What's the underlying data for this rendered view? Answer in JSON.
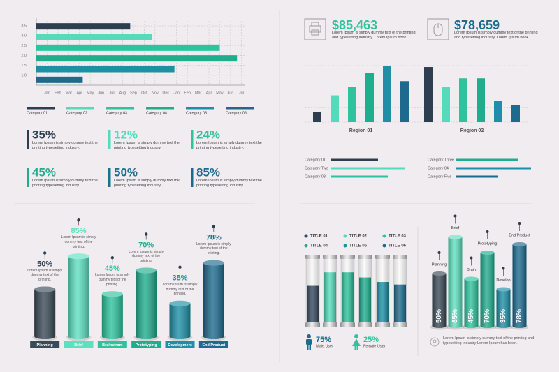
{
  "chart_data": [
    {
      "type": "bar",
      "orientation": "horizontal",
      "categories": [
        "Category 01",
        "Category 02",
        "Category 03",
        "Category 04",
        "Category 05",
        "Category 06"
      ],
      "values": [
        8.7,
        10.7,
        17.0,
        18.6,
        12.8,
        4.3
      ],
      "colors": [
        "#2c3e50",
        "#54dbbb",
        "#2ec39d",
        "#20ad8e",
        "#1d8fa6",
        "#1d6a8e"
      ],
      "xlim": [
        0,
        19.3
      ],
      "xticks": [
        {
          "value": 1,
          "label": "Jan"
        },
        {
          "value": 2,
          "label": "Feb"
        },
        {
          "value": 3,
          "label": "Mar"
        },
        {
          "value": 4,
          "label": "Apr"
        },
        {
          "value": 5,
          "label": "May"
        },
        {
          "value": 6,
          "label": "Jun"
        },
        {
          "value": 7,
          "label": "Jul"
        },
        {
          "value": 8,
          "label": "Aug"
        },
        {
          "value": 9,
          "label": "Sep"
        },
        {
          "value": 10,
          "label": "Oct"
        },
        {
          "value": 11,
          "label": "Nov"
        },
        {
          "value": 12,
          "label": "Dec"
        },
        {
          "value": 13,
          "label": "Jan"
        },
        {
          "value": 14,
          "label": "Feb"
        },
        {
          "value": 15,
          "label": "Mar"
        },
        {
          "value": 16,
          "label": "Apr"
        },
        {
          "value": 17,
          "label": "May"
        },
        {
          "value": 18,
          "label": "Jun"
        },
        {
          "value": 19,
          "label": "Jul"
        }
      ],
      "ylim": [
        0.5,
        3.75
      ],
      "yticks": [
        {
          "value": 1,
          "label": "1.0"
        },
        1.5,
        {
          "value": 2,
          "label": "2.0"
        },
        2.5,
        {
          "value": 3,
          "label": "3.0"
        },
        3.5
      ],
      "grid": true
    },
    {
      "type": "column",
      "categories": [
        "Region 01",
        "Region 02"
      ],
      "series": [
        {
          "name": "Category 01",
          "color": "#2c3e50",
          "values": [
            0.7,
            3.9
          ]
        },
        {
          "name": "Category Two",
          "color": "#54dbbb",
          "values": [
            1.9,
            2.5
          ]
        },
        {
          "name": "Category 03",
          "color": "#2ec39d",
          "values": [
            2.5,
            3.1
          ]
        },
        {
          "name": "Category Three",
          "color": "#20ad8e",
          "values": [
            3.5,
            3.1
          ]
        },
        {
          "name": "Category 04",
          "color": "#1d8fa6",
          "values": [
            4.0,
            1.5
          ]
        },
        {
          "name": "Category Five",
          "color": "#1d6a8e",
          "values": [
            2.9,
            1.2
          ]
        }
      ],
      "ylim": [
        0,
        4
      ],
      "yticks": [
        0,
        1,
        2,
        3,
        4
      ],
      "grid": true
    },
    {
      "type": "cylinder",
      "label_position": "above",
      "categories": [
        "Planning",
        "Brief",
        "Brainstrom",
        "Prototyping",
        "Development",
        "End Product"
      ],
      "values": [
        50,
        85,
        45,
        70,
        35,
        78
      ],
      "value_labels": [
        "50%",
        "85%",
        "45%",
        "70%",
        "35%",
        "78%"
      ],
      "annotations": [
        "Lorem Ipsum is simply dummy text of the printing.",
        "Lorem Ipsum is simply dummy text of the printing.",
        "Lorem Ipsum is simply dummy text of the printing.",
        "Lorem Ipsum is simply dummy text of the printing.",
        "Lorem Ipsum is simply dummy text of the printing.",
        "Lorem Ipsum is simply dummy text of the printing."
      ],
      "colors": [
        "#3a4a56",
        "#5ee0c0",
        "#2ec39d",
        "#20ad8e",
        "#1d8fa6",
        "#1d6a8e"
      ],
      "ylim": [
        0,
        100
      ]
    },
    {
      "type": "tube",
      "categories": [
        "TITLE 01",
        "TITLE 02",
        "TITLE 03",
        "TITLE 04",
        "TITLE 05",
        "TITLE 06"
      ],
      "values": [
        57,
        78,
        78,
        70,
        63,
        59
      ],
      "colors": [
        "#34495e",
        "#54dbbb",
        "#2ec39d",
        "#20ad8e",
        "#1d8fa6",
        "#1d6a8e"
      ],
      "ylim": [
        0,
        100
      ]
    },
    {
      "type": "cylinder",
      "label_position": "inside",
      "categories": [
        "Planning",
        "Brief",
        "Brain",
        "Prototyping",
        "Develop",
        "End Product"
      ],
      "values": [
        50,
        85,
        45,
        70,
        35,
        78
      ],
      "value_labels": [
        "50%",
        "85%",
        "45%",
        "70%",
        "35%",
        "78%"
      ],
      "colors": [
        "#3a4a56",
        "#5ee0c0",
        "#2ec39d",
        "#20ad8e",
        "#1d8fa6",
        "#1d6a8e"
      ],
      "ylim": [
        0,
        100
      ],
      "caption": "Lorem Ipsum is simply dummy text of the printing and typesetting industry Lorem Ipsum has been."
    }
  ],
  "stats": [
    {
      "value": "35%",
      "text": "Lorem Ipsum is simply dummy text the printing typesetting industry.",
      "color": "#2c3e50"
    },
    {
      "value": "12%",
      "text": "Lorem Ipsum is simply dummy text the printing typesetting industry.",
      "color": "#54dbbb"
    },
    {
      "value": "24%",
      "text": "Lorem Ipsum is simply dummy text the printing typesetting industry.",
      "color": "#2ec39d"
    },
    {
      "value": "45%",
      "text": "Lorem Ipsum is simply dummy text the printing typesetting industry.",
      "color": "#20ad8e"
    },
    {
      "value": "50%",
      "text": "Lorem Ipsum is simply dummy text the printing typesetting industry.",
      "color": "#1d6f8e"
    },
    {
      "value": "85%",
      "text": "Lorem Ipsum is simply dummy text the printing typesetting industry.",
      "color": "#1d6a8e"
    }
  ],
  "kpis": [
    {
      "value": "$85,463",
      "text": "Lorem Ipsum is simply dummy text of the printing and typesetting industry. Lorem Ipsum book.",
      "color": "#2ec39d"
    },
    {
      "value": "$78,659",
      "text": "Lorem Ipsum is simply dummy text of the printing and typesetting industry. Lorem Ipsum book.",
      "color": "#1d6a8e"
    }
  ],
  "users": [
    {
      "value": "75%",
      "label": "Male User"
    },
    {
      "value": "25%",
      "label": "Female User"
    }
  ]
}
